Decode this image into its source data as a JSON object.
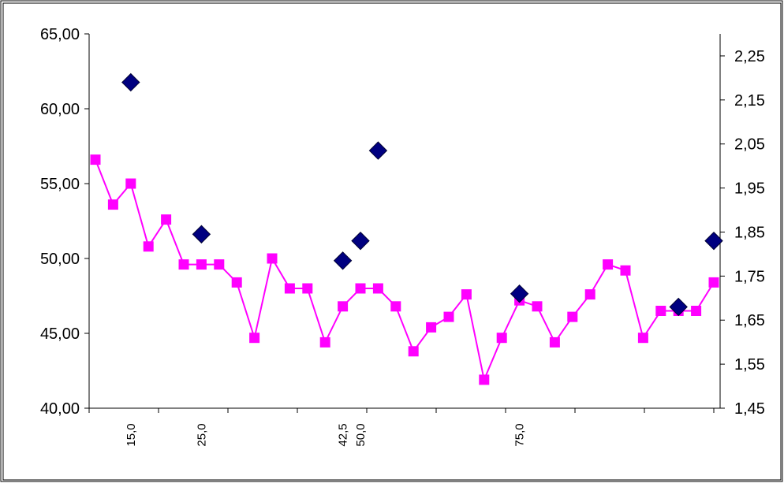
{
  "chart_data": {
    "type": "line",
    "title": "",
    "xlabel": "",
    "ylabel": "",
    "y_left": {
      "range": [
        40,
        65
      ],
      "ticks": [
        "40,00",
        "45,00",
        "50,00",
        "55,00",
        "60,00",
        "65,00"
      ],
      "tick_values": [
        40,
        45,
        50,
        55,
        60,
        65
      ]
    },
    "y_right": {
      "range": [
        1.45,
        2.3
      ],
      "ticks": [
        "1,45",
        "1,55",
        "1,65",
        "1,75",
        "1,85",
        "1,95",
        "2,05",
        "2,15",
        "2,25"
      ],
      "tick_values": [
        1.45,
        1.55,
        1.65,
        1.75,
        1.85,
        1.95,
        2.05,
        2.15,
        2.25
      ]
    },
    "x_labels": [
      {
        "label": "15,0",
        "index": 2
      },
      {
        "label": "25,0",
        "index": 6
      },
      {
        "label": "42,5",
        "index": 14
      },
      {
        "label": "50,0",
        "index": 15
      },
      {
        "label": "75,0",
        "index": 24
      }
    ],
    "grid": false,
    "legend": "none",
    "series": [
      {
        "axis": "left",
        "marker": "square",
        "color": "#ff00ff",
        "values": [
          56.6,
          53.6,
          55.0,
          50.8,
          52.6,
          49.6,
          49.6,
          49.6,
          48.4,
          44.7,
          50.0,
          48.0,
          48.0,
          44.4,
          46.8,
          48.0,
          48.0,
          46.8,
          43.8,
          45.4,
          46.1,
          47.6,
          41.9,
          44.7,
          47.2,
          46.8,
          44.4,
          46.1,
          47.6,
          49.6,
          49.2,
          44.7,
          46.5,
          46.5,
          46.5,
          48.4
        ]
      },
      {
        "axis": "right",
        "marker": "diamond",
        "color": "#000080",
        "points": [
          {
            "index": 2,
            "value": 2.19
          },
          {
            "index": 6,
            "value": 1.845
          },
          {
            "index": 14,
            "value": 1.785
          },
          {
            "index": 15,
            "value": 1.83
          },
          {
            "index": 16,
            "value": 2.035
          },
          {
            "index": 24,
            "value": 1.71
          },
          {
            "index": 33,
            "value": 1.68
          },
          {
            "index": 35,
            "value": 1.83
          }
        ]
      }
    ]
  }
}
